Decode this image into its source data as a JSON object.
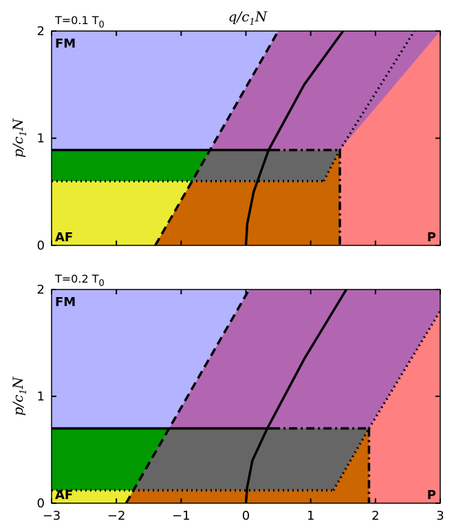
{
  "chart_data": [
    {
      "type": "phase-diagram",
      "title": "T=0.1 T",
      "title_sub": "0",
      "xlabel": "q/c",
      "xlabel_sub": "1",
      "xlabel_tail": "N",
      "ylabel": "p/c",
      "ylabel_sub": "1",
      "ylabel_tail": "N",
      "xlim": [
        -3,
        3
      ],
      "ylim": [
        0,
        2
      ],
      "yticks": [
        0,
        1,
        2
      ],
      "ytick_labels": [
        "0",
        "1",
        "2"
      ],
      "xticks": [
        -3,
        -2,
        -1,
        0,
        1,
        2,
        3
      ],
      "xtick_labels": [],
      "region_labels": {
        "fm": "FM",
        "af": "AF",
        "p": "P"
      },
      "colors": {
        "fm": "#b3b3ff",
        "purple": "#b266b2",
        "green": "#009900",
        "yellow": "#ebeb33",
        "gray": "#666666",
        "orange": "#cc6600",
        "pink": "#ff8080"
      },
      "lines": {
        "h_solid_y": 0.89,
        "h_dotted_y": 0.6,
        "dashed": [
          [
            -1.4,
            0
          ],
          [
            0.5,
            2
          ]
        ],
        "dotted_diag": [
          [
            1.45,
            0.89
          ],
          [
            2.6,
            2
          ]
        ],
        "dotted_corner": [
          [
            1.2,
            0.6
          ],
          [
            1.45,
            0.89
          ]
        ],
        "dashdot_h_end": 1.45,
        "dashdot_v_x": 1.45,
        "curve": [
          [
            0,
            0
          ],
          [
            0.02,
            0.2
          ],
          [
            0.12,
            0.5
          ],
          [
            0.35,
            0.89
          ],
          [
            0.9,
            1.5
          ],
          [
            1.5,
            2
          ]
        ]
      }
    },
    {
      "type": "phase-diagram",
      "title": "T=0.2 T",
      "title_sub": "0",
      "xlabel": "",
      "ylabel": "p/c",
      "ylabel_sub": "1",
      "ylabel_tail": "N",
      "xlim": [
        -3,
        3
      ],
      "ylim": [
        0,
        2
      ],
      "yticks": [
        0,
        1,
        2
      ],
      "ytick_labels": [
        "0",
        "1",
        "2"
      ],
      "xticks": [
        -3,
        -2,
        -1,
        0,
        1,
        2,
        3
      ],
      "xtick_labels": [
        "−3",
        "−2",
        "−1",
        "0",
        "1",
        "2",
        "3"
      ],
      "region_labels": {
        "fm": "FM",
        "af": "AF",
        "p": "P"
      },
      "colors": {
        "fm": "#b3b3ff",
        "purple": "#b266b2",
        "green": "#009900",
        "yellow": "#ebeb33",
        "gray": "#666666",
        "orange": "#cc6600",
        "pink": "#ff8080"
      },
      "lines": {
        "h_solid_y": 0.7,
        "h_dotted_y": 0.12,
        "dashed": [
          [
            -1.85,
            0
          ],
          [
            0.05,
            2
          ]
        ],
        "dotted_diag": [
          [
            1.9,
            0.7
          ],
          [
            3.0,
            1.8
          ]
        ],
        "dotted_corner": [
          [
            1.35,
            0.12
          ],
          [
            1.9,
            0.7
          ]
        ],
        "dashdot_h_end": 1.9,
        "dashdot_v_x": 1.9,
        "curve": [
          [
            0,
            0
          ],
          [
            0.02,
            0.15
          ],
          [
            0.1,
            0.4
          ],
          [
            0.33,
            0.7
          ],
          [
            0.9,
            1.35
          ],
          [
            1.55,
            2
          ]
        ]
      }
    }
  ]
}
